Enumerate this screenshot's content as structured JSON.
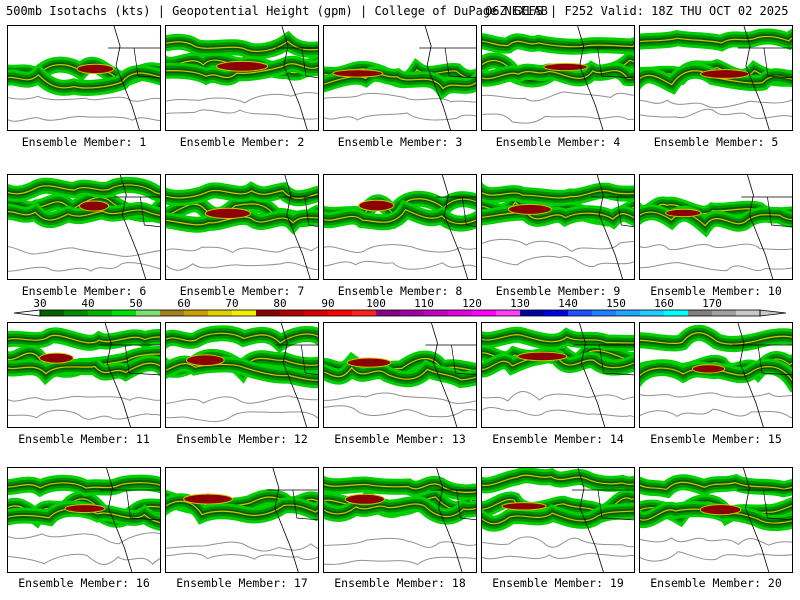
{
  "header": {
    "product": "500mb Isotachs (kts) | Geopotential Height (gpm) | College of DuPage NEXLAB",
    "run": "06Z GEFS | F252 Valid: 18Z THU OCT 02 2025"
  },
  "members": [
    {
      "label": "Ensemble Member: 1"
    },
    {
      "label": "Ensemble Member: 2"
    },
    {
      "label": "Ensemble Member: 3"
    },
    {
      "label": "Ensemble Member: 4"
    },
    {
      "label": "Ensemble Member: 5"
    },
    {
      "label": "Ensemble Member: 6"
    },
    {
      "label": "Ensemble Member: 7"
    },
    {
      "label": "Ensemble Member: 8"
    },
    {
      "label": "Ensemble Member: 9"
    },
    {
      "label": "Ensemble Member: 10"
    },
    {
      "label": "Ensemble Member: 11"
    },
    {
      "label": "Ensemble Member: 12"
    },
    {
      "label": "Ensemble Member: 13"
    },
    {
      "label": "Ensemble Member: 14"
    },
    {
      "label": "Ensemble Member: 15"
    },
    {
      "label": "Ensemble Member: 16"
    },
    {
      "label": "Ensemble Member: 17"
    },
    {
      "label": "Ensemble Member: 18"
    },
    {
      "label": "Ensemble Member: 19"
    },
    {
      "label": "Ensemble Member: 20"
    }
  ],
  "colorbar": {
    "labels": [
      "30",
      "40",
      "50",
      "60",
      "70",
      "80",
      "90",
      "100",
      "110",
      "120",
      "130",
      "140",
      "150",
      "160",
      "170"
    ],
    "colors": [
      "#006400",
      "#008c00",
      "#00b400",
      "#00e000",
      "#7ce070",
      "#a08020",
      "#c8a000",
      "#e0d000",
      "#f0f000",
      "#8b0000",
      "#b00000",
      "#d80000",
      "#ff0000",
      "#ff2020",
      "#880088",
      "#a000a0",
      "#c000c0",
      "#e000e0",
      "#ff00ff",
      "#ff40ff",
      "#0000a0",
      "#0000e0",
      "#2050ff",
      "#2080ff",
      "#20a8ff",
      "#20d0ff",
      "#00ffff",
      "#808080",
      "#a0a0a0",
      "#c8c8c8"
    ]
  },
  "legend_colors": {
    "jet_light": "#00d000",
    "jet_mid": "#009000",
    "jet_dark": "#006000",
    "core_yellow": "#d8c000",
    "core": "#8b0000",
    "height_contour": "#909090",
    "map_lines": "#000000"
  }
}
